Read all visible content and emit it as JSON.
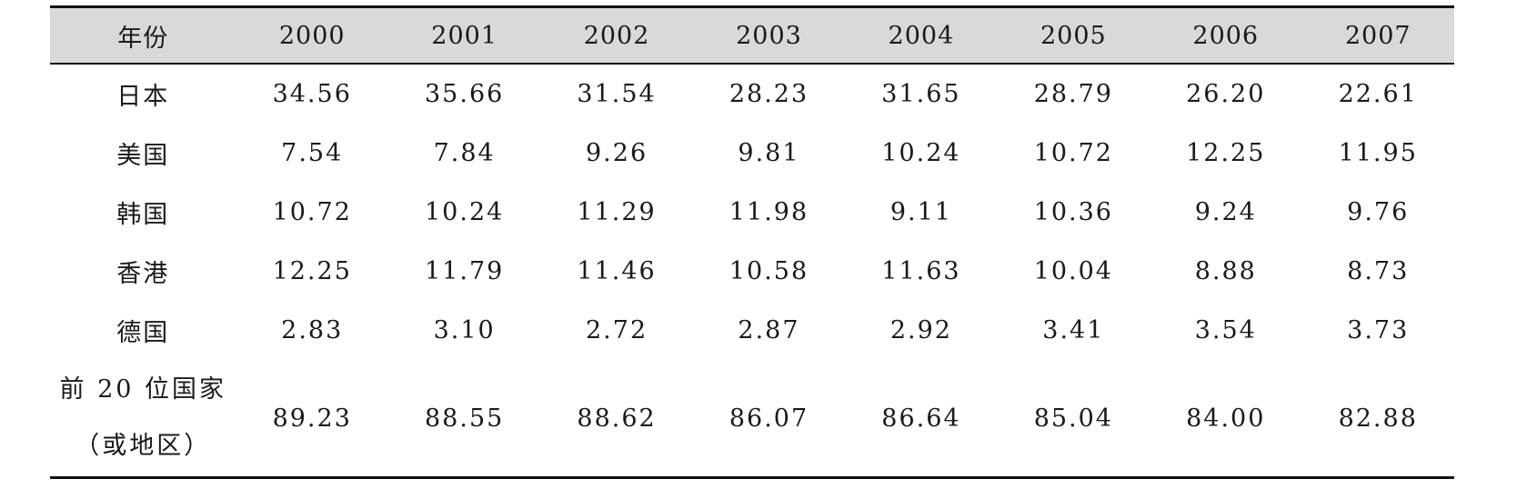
{
  "table": {
    "header_label": "年份",
    "years": [
      "2000",
      "2001",
      "2002",
      "2003",
      "2004",
      "2005",
      "2006",
      "2007"
    ],
    "rows": [
      {
        "label": "日本",
        "values": [
          "34.56",
          "35.66",
          "31.54",
          "28.23",
          "31.65",
          "28.79",
          "26.20",
          "22.61"
        ]
      },
      {
        "label": "美国",
        "values": [
          "7.54",
          "7.84",
          "9.26",
          "9.81",
          "10.24",
          "10.72",
          "12.25",
          "11.95"
        ]
      },
      {
        "label": "韩国",
        "values": [
          "10.72",
          "10.24",
          "11.29",
          "11.98",
          "9.11",
          "10.36",
          "9.24",
          "9.76"
        ]
      },
      {
        "label": "香港",
        "values": [
          "12.25",
          "11.79",
          "11.46",
          "10.58",
          "11.63",
          "10.04",
          "8.88",
          "8.73"
        ]
      },
      {
        "label": "德国",
        "values": [
          "2.83",
          "3.10",
          "2.72",
          "2.87",
          "2.92",
          "3.41",
          "3.54",
          "3.73"
        ]
      }
    ],
    "last_row": {
      "label_line1": "前 20 位国家",
      "label_line2": "（或地区）",
      "values": [
        "89.23",
        "88.55",
        "88.62",
        "86.07",
        "86.64",
        "85.04",
        "84.00",
        "82.88"
      ]
    }
  }
}
